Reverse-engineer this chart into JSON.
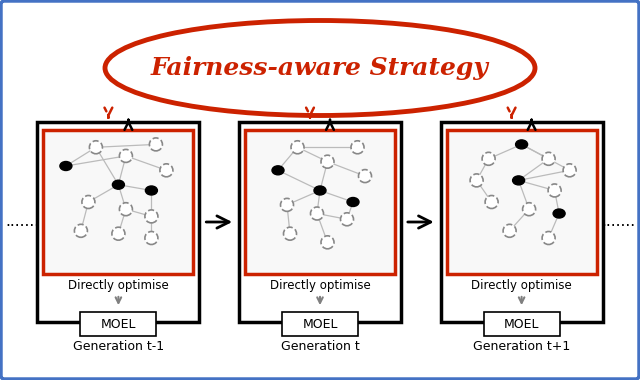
{
  "title": "Fairness-aware Strategy",
  "title_color": "#CC2200",
  "title_fontsize": 18,
  "outer_border_color": "#4472C4",
  "ellipse_color": "#CC2200",
  "box_border_color": "#000000",
  "inner_box_color": "#CC2200",
  "generation_labels": [
    "Generation t-1",
    "Generation t",
    "Generation t+1"
  ],
  "moel_label": "MOEL",
  "directly_optimise_label": "Directly optimise",
  "dots_left": ".......",
  "dots_right": ".......",
  "figw": 6.4,
  "figh": 3.8,
  "dpi": 100
}
